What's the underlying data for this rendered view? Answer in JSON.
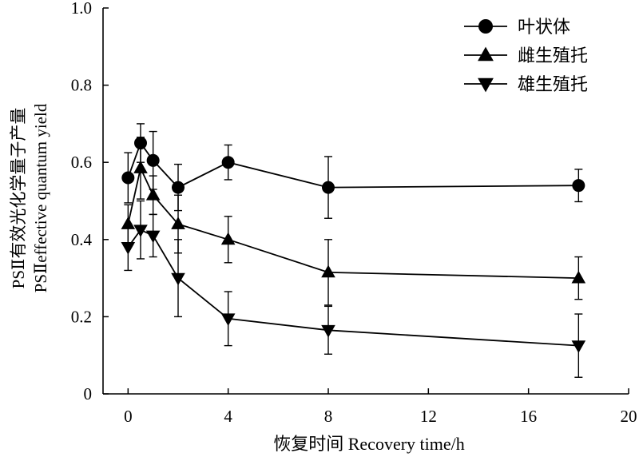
{
  "chart_data": {
    "type": "line",
    "xlabel": "恢复时间 Recovery time/h",
    "ylabel_cn": "PSⅡ有效光化学量子产量",
    "ylabel_en": "PSⅡeffective quantum yield",
    "xlim": [
      -1,
      20
    ],
    "ylim": [
      0,
      1.0
    ],
    "xticks": [
      0,
      4,
      8,
      12,
      16,
      20
    ],
    "yticks": [
      0,
      0.2,
      0.4,
      0.6,
      0.8,
      1.0
    ],
    "xtick_labels": [
      "0",
      "4",
      "8",
      "12",
      "16",
      "20"
    ],
    "ytick_labels": [
      "0",
      "0.2",
      "0.4",
      "0.6",
      "0.8",
      "1.0"
    ],
    "grid": false,
    "legend_position": "top-right",
    "series": [
      {
        "name": "叶状体",
        "marker": "circle",
        "x": [
          0,
          0.5,
          1,
          2,
          4,
          8,
          18
        ],
        "y": [
          0.56,
          0.65,
          0.605,
          0.535,
          0.6,
          0.535,
          0.54
        ],
        "err": [
          0.065,
          0.05,
          0.075,
          0.06,
          0.045,
          0.08,
          0.042
        ]
      },
      {
        "name": "雌生殖托",
        "marker": "triangle-up",
        "x": [
          0,
          0.5,
          1,
          2,
          4,
          8,
          18
        ],
        "y": [
          0.44,
          0.585,
          0.515,
          0.44,
          0.4,
          0.315,
          0.3
        ],
        "err": [
          0.05,
          0.08,
          0.05,
          0.075,
          0.06,
          0.085,
          0.055
        ]
      },
      {
        "name": "雄生殖托",
        "marker": "triangle-down",
        "x": [
          0,
          0.5,
          1,
          2,
          4,
          8,
          18
        ],
        "y": [
          0.38,
          0.425,
          0.41,
          0.3,
          0.195,
          0.165,
          0.125
        ],
        "err": [
          0.06,
          0.075,
          0.055,
          0.1,
          0.07,
          0.062,
          0.082
        ]
      }
    ]
  }
}
